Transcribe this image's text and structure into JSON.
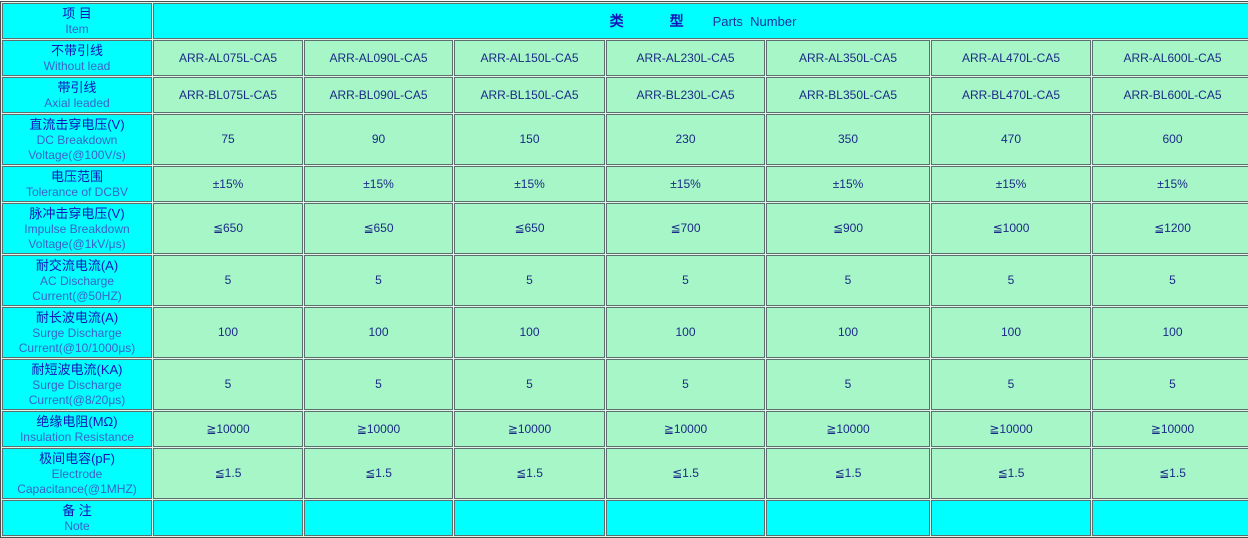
{
  "colors": {
    "header_bg": "#00ffff",
    "data_bg": "#a6f6c8",
    "zh_text": "#1414b8",
    "en_text": "#3a62c8",
    "value_text": "#1b2a86"
  },
  "table": {
    "header": {
      "item_zh": "项 目",
      "item_en": "Item",
      "type_zh": "类　　　型",
      "type_en": "Parts  Number"
    },
    "rows": [
      {
        "id": "without-lead",
        "zh": "不带引线",
        "en": "Without lead",
        "values": [
          "ARR-AL075L-CA5",
          "ARR-AL090L-CA5",
          "ARR-AL150L-CA5",
          "ARR-AL230L-CA5",
          "ARR-AL350L-CA5",
          "ARR-AL470L-CA5",
          "ARR-AL600L-CA5"
        ]
      },
      {
        "id": "axial-leaded",
        "zh": "带引线",
        "en": "Axial leaded",
        "values": [
          "ARR-BL075L-CA5",
          "ARR-BL090L-CA5",
          "ARR-BL150L-CA5",
          "ARR-BL230L-CA5",
          "ARR-BL350L-CA5",
          "ARR-BL470L-CA5",
          "ARR-BL600L-CA5"
        ]
      },
      {
        "id": "dc-breakdown-voltage",
        "zh": "直流击穿电压(V)",
        "en": "DC Breakdown\nVoltage(@100V/s)",
        "values": [
          "75",
          "90",
          "150",
          "230",
          "350",
          "470",
          "600"
        ]
      },
      {
        "id": "tolerance-of-dcbv",
        "zh": "电压范围",
        "en": "Tolerance of DCBV",
        "values": [
          "±15%",
          "±15%",
          "±15%",
          "±15%",
          "±15%",
          "±15%",
          "±15%"
        ]
      },
      {
        "id": "impulse-breakdown-voltage",
        "zh": "脉冲击穿电压(V)",
        "en": "Impulse Breakdown\nVoltage(@1kV/μs)",
        "values": [
          "≦650",
          "≦650",
          "≦650",
          "≦700",
          "≦900",
          "≦1000",
          "≦1200"
        ]
      },
      {
        "id": "ac-discharge-current",
        "zh": "耐交流电流(A)",
        "en": "AC Discharge\nCurrent(@50HZ)",
        "values": [
          "5",
          "5",
          "5",
          "5",
          "5",
          "5",
          "5"
        ]
      },
      {
        "id": "surge-discharge-current-long",
        "zh": "耐长波电流(A)",
        "en": "Surge Discharge\nCurrent(@10/1000μs)",
        "values": [
          "100",
          "100",
          "100",
          "100",
          "100",
          "100",
          "100"
        ]
      },
      {
        "id": "surge-discharge-current-short",
        "zh": "耐短波电流(KA)",
        "en": "Surge Discharge\nCurrent(@8/20μs)",
        "values": [
          "5",
          "5",
          "5",
          "5",
          "5",
          "5",
          "5"
        ]
      },
      {
        "id": "insulation-resistance",
        "zh": "绝缘电阻(MΩ)",
        "en": "Insulation Resistance",
        "values": [
          "≧10000",
          "≧10000",
          "≧10000",
          "≧10000",
          "≧10000",
          "≧10000",
          "≧10000"
        ]
      },
      {
        "id": "electrode-capacitance",
        "zh": "极间电容(pF)",
        "en": "Electrode\nCapacitance(@1MHZ)",
        "values": [
          "≦1.5",
          "≦1.5",
          "≦1.5",
          "≦1.5",
          "≦1.5",
          "≦1.5",
          "≦1.5"
        ]
      },
      {
        "id": "note",
        "zh": "备 注",
        "en": "Note",
        "cyan_values": true,
        "values": [
          "",
          "",
          "",
          "",
          "",
          "",
          ""
        ]
      }
    ]
  }
}
